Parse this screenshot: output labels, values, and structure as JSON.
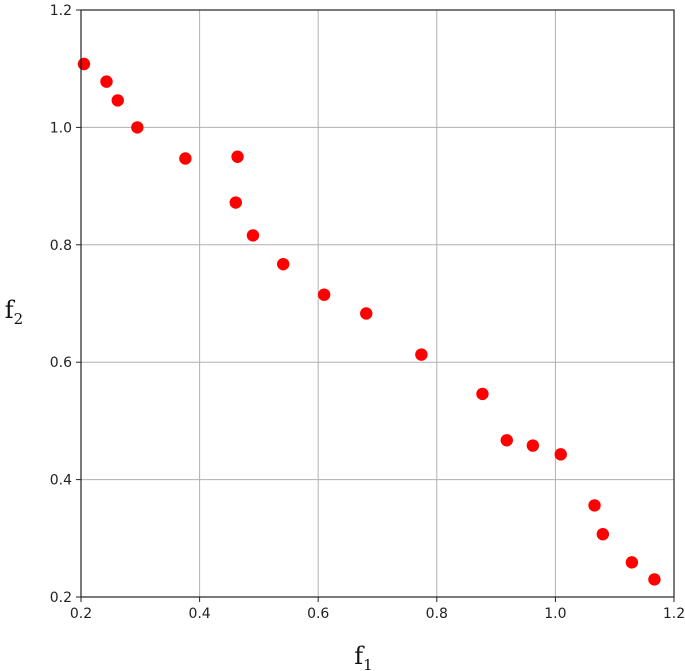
{
  "chart_data": {
    "type": "scatter",
    "xlabel": "f",
    "xlabel_sub": "1",
    "ylabel": "f",
    "ylabel_sub": "2",
    "xlim": [
      0.2,
      1.2
    ],
    "ylim": [
      0.2,
      1.2
    ],
    "xticks": [
      "0.2",
      "0.4",
      "0.6",
      "0.8",
      "1.0",
      "1.2"
    ],
    "yticks": [
      "0.2",
      "0.4",
      "0.6",
      "0.8",
      "1.0",
      "1.2"
    ],
    "grid": true,
    "series": [
      {
        "color": "#ff0000",
        "points": [
          {
            "x": 0.205,
            "y": 1.108
          },
          {
            "x": 0.243,
            "y": 1.078
          },
          {
            "x": 0.262,
            "y": 1.046
          },
          {
            "x": 0.295,
            "y": 1.0
          },
          {
            "x": 0.376,
            "y": 0.947
          },
          {
            "x": 0.464,
            "y": 0.95
          },
          {
            "x": 0.461,
            "y": 0.872
          },
          {
            "x": 0.49,
            "y": 0.816
          },
          {
            "x": 0.541,
            "y": 0.767
          },
          {
            "x": 0.61,
            "y": 0.715
          },
          {
            "x": 0.681,
            "y": 0.683
          },
          {
            "x": 0.774,
            "y": 0.613
          },
          {
            "x": 0.877,
            "y": 0.546
          },
          {
            "x": 0.918,
            "y": 0.467
          },
          {
            "x": 0.962,
            "y": 0.458
          },
          {
            "x": 1.009,
            "y": 0.443
          },
          {
            "x": 1.066,
            "y": 0.356
          },
          {
            "x": 1.08,
            "y": 0.307
          },
          {
            "x": 1.129,
            "y": 0.259
          },
          {
            "x": 1.167,
            "y": 0.23
          }
        ]
      }
    ]
  }
}
